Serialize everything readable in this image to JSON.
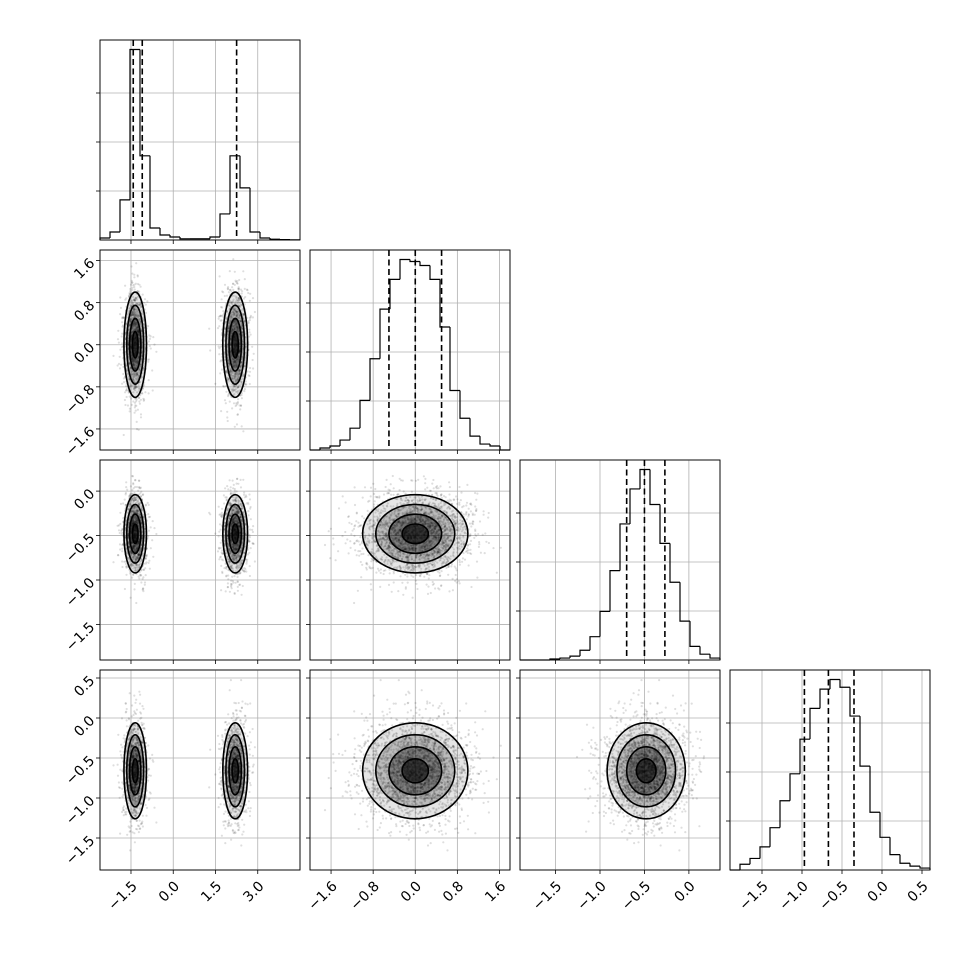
{
  "chart_data": {
    "type": "corner",
    "parameters": [
      {
        "range": [
          -2.6,
          4.5
        ],
        "ticks": [
          -1.5,
          0.0,
          1.5,
          3.0
        ],
        "tick_labels": [
          "−1.5",
          "0.0",
          "1.5",
          "3.0"
        ],
        "quantiles": [
          -1.42,
          -1.1,
          2.25
        ],
        "histogram": {
          "edges": [
            -2.6,
            -2.245,
            -1.89,
            -1.535,
            -1.18,
            -0.825,
            -0.47,
            -0.115,
            0.24,
            0.595,
            0.95,
            1.305,
            1.66,
            2.015,
            2.37,
            2.725,
            3.08,
            3.435,
            3.79,
            4.145,
            4.5
          ],
          "counts": [
            0.01,
            0.04,
            0.2,
            0.95,
            0.42,
            0.06,
            0.025,
            0.015,
            0.006,
            0.006,
            0.006,
            0.015,
            0.13,
            0.42,
            0.26,
            0.04,
            0.01,
            0.004,
            0.002,
            0.001
          ]
        },
        "modes": [
          {
            "center": -1.35,
            "sd": 0.2,
            "weight": 0.5
          },
          {
            "center": 2.2,
            "sd": 0.22,
            "weight": 0.5
          }
        ]
      },
      {
        "range": [
          -2.0,
          1.8
        ],
        "ticks": [
          -1.6,
          -0.8,
          0.0,
          0.8,
          1.6
        ],
        "tick_labels": [
          "−1.6",
          "−0.8",
          "0.0",
          "0.8",
          "1.6"
        ],
        "quantiles": [
          -0.5,
          0.0,
          0.5
        ],
        "histogram": {
          "edges": [
            -2.0,
            -1.81,
            -1.62,
            -1.43,
            -1.24,
            -1.05,
            -0.86,
            -0.67,
            -0.48,
            -0.29,
            -0.1,
            0.09,
            0.28,
            0.47,
            0.66,
            0.85,
            1.04,
            1.23,
            1.42,
            1.61,
            1.8
          ],
          "counts": [
            0.0,
            0.01,
            0.02,
            0.05,
            0.11,
            0.25,
            0.46,
            0.71,
            0.86,
            0.96,
            0.95,
            0.93,
            0.86,
            0.62,
            0.3,
            0.16,
            0.07,
            0.03,
            0.02,
            0.0
          ]
        },
        "modes": [
          {
            "center": 0.0,
            "sd": 0.5,
            "weight": 1
          }
        ]
      },
      {
        "range": [
          -1.9,
          0.35
        ],
        "ticks": [
          -1.5,
          -1.0,
          -0.5,
          0.0
        ],
        "tick_labels": [
          "−1.5",
          "−1.0",
          "−0.5",
          "0.0"
        ],
        "quantiles": [
          -0.7,
          -0.5,
          -0.27
        ],
        "histogram": {
          "edges": [
            -1.9,
            -1.7875,
            -1.675,
            -1.5625,
            -1.45,
            -1.3375,
            -1.225,
            -1.1125,
            -1.0,
            -0.8875,
            -0.775,
            -0.6625,
            -0.55,
            -0.4375,
            -0.325,
            -0.2125,
            -0.1,
            0.0125,
            0.125,
            0.2375,
            0.35
          ],
          "counts": [
            0.0,
            0.0,
            0.0,
            0.005,
            0.01,
            0.02,
            0.05,
            0.12,
            0.25,
            0.46,
            0.7,
            0.88,
            0.98,
            0.8,
            0.6,
            0.4,
            0.2,
            0.07,
            0.03,
            0.01
          ]
        },
        "modes": [
          {
            "center": -0.48,
            "sd": 0.22,
            "weight": 1
          }
        ]
      },
      {
        "range": [
          -1.9,
          0.6
        ],
        "ticks": [
          -1.5,
          -1.0,
          -0.5,
          0.0,
          0.5
        ],
        "tick_labels": [
          "−1.5",
          "−1.0",
          "−0.5",
          "0.0",
          "0.5"
        ],
        "quantiles": [
          -0.97,
          -0.67,
          -0.35
        ],
        "histogram": {
          "edges": [
            -1.9,
            -1.775,
            -1.65,
            -1.525,
            -1.4,
            -1.275,
            -1.15,
            -1.025,
            -0.9,
            -0.775,
            -0.65,
            -0.525,
            -0.4,
            -0.275,
            -0.15,
            -0.025,
            0.1,
            0.225,
            0.35,
            0.475,
            0.6
          ],
          "counts": [
            0.0,
            0.03,
            0.06,
            0.12,
            0.22,
            0.36,
            0.5,
            0.68,
            0.84,
            0.94,
            0.99,
            0.95,
            0.8,
            0.54,
            0.3,
            0.17,
            0.08,
            0.035,
            0.02,
            0.01
          ]
        },
        "modes": [
          {
            "center": -0.66,
            "sd": 0.3,
            "weight": 1
          }
        ]
      }
    ],
    "grid": true,
    "scatter_color": "#000000",
    "contour_color": "#000000"
  }
}
